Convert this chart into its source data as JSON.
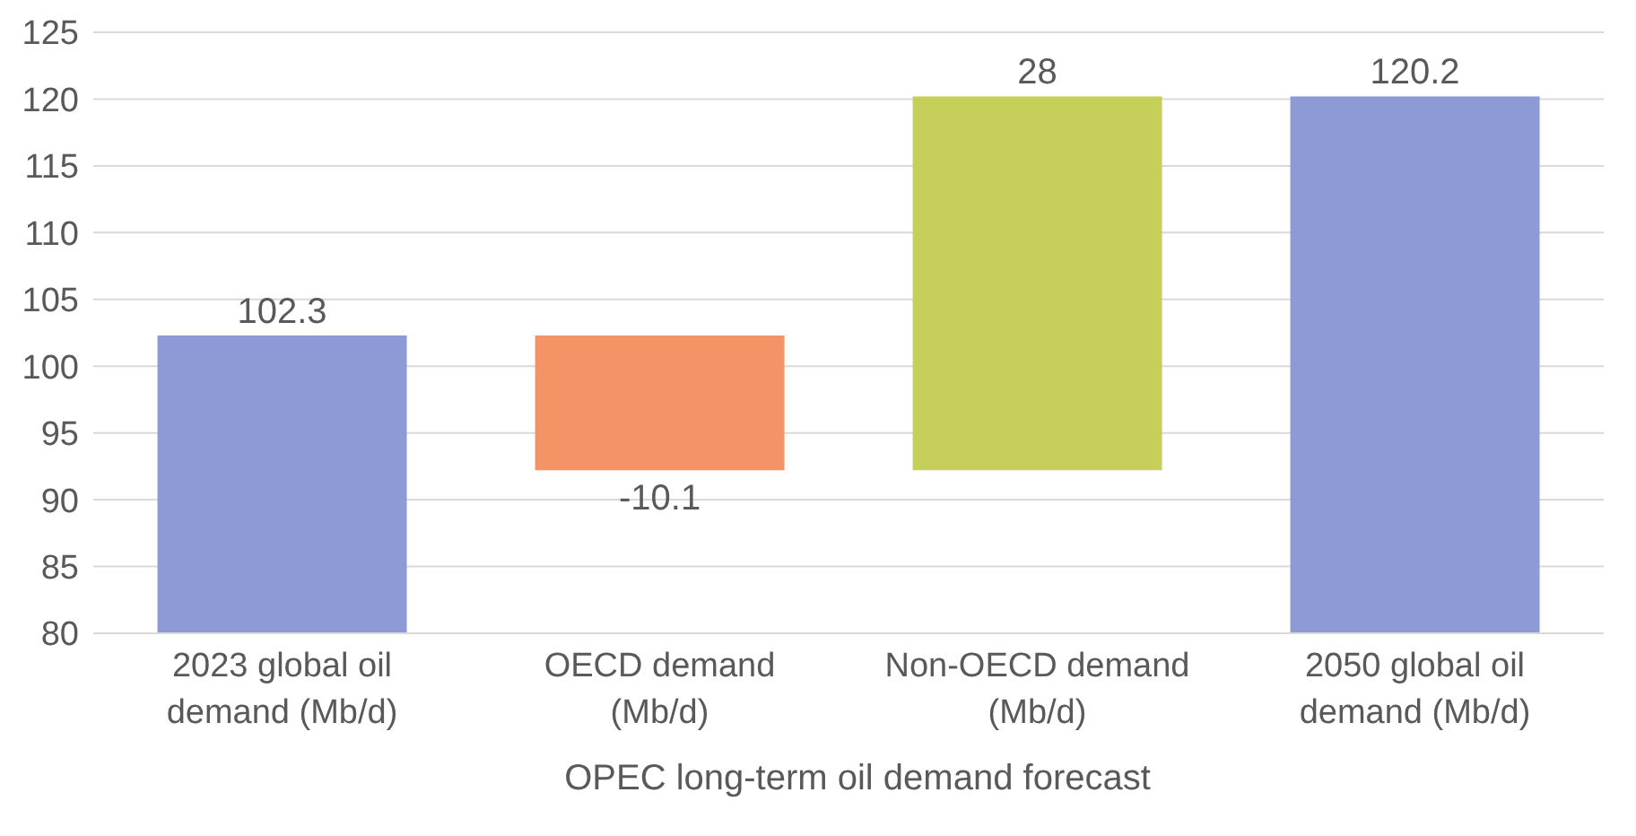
{
  "chart_data": {
    "type": "bar",
    "xlabel": "OPEC long-term oil demand forecast",
    "categories": [
      "2023 global oil demand (Mb/d)",
      "OECD demand (Mb/d)",
      "Non-OECD demand (Mb/d)",
      "2050 global oil demand (Mb/d)"
    ],
    "values": [
      102.3,
      -10.1,
      28,
      120.2
    ],
    "base": [
      0,
      102.3,
      92.2,
      0
    ],
    "colors": [
      "#8e9ad6",
      "#f49466",
      "#c5cf5a",
      "#8e9ad6"
    ],
    "data_labels": true,
    "ylim": [
      80,
      125
    ],
    "yticks": [
      80,
      85,
      90,
      95,
      100,
      105,
      110,
      115,
      120,
      125
    ],
    "grid": "y",
    "legend": false
  }
}
